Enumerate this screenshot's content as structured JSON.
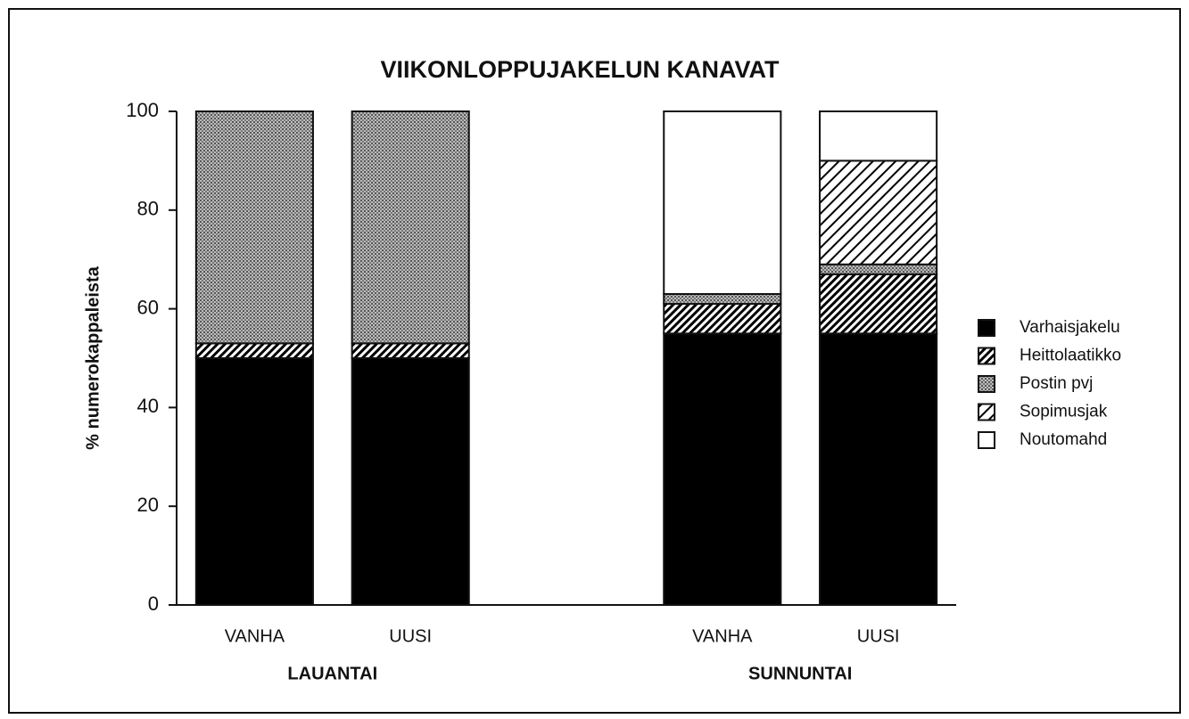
{
  "chart_data": {
    "type": "stacked_bar",
    "title": "VIIKONLOPPUJAKELUN KANAVAT",
    "y_label": "% numerokappaleista",
    "categories": [
      "VANHA",
      "UUSI",
      null,
      "VANHA",
      "UUSI"
    ],
    "groups": [
      {
        "label": "LAUANTAI",
        "categories": [
          0,
          1
        ]
      },
      {
        "label": "SUNNUNTAI",
        "categories": [
          3,
          4
        ]
      }
    ],
    "series": [
      {
        "name": "Varhaisjakelu",
        "color": "#000000",
        "pattern": "solid",
        "values": [
          50,
          50,
          null,
          55,
          55
        ]
      },
      {
        "name": "Heittolaatikko",
        "color": "#000000",
        "pattern": "dense-hatch",
        "values": [
          3,
          3,
          null,
          6,
          12
        ]
      },
      {
        "name": "Postin pvj",
        "color": "#000000",
        "pattern": "dots",
        "values": [
          47,
          47,
          null,
          2,
          2
        ]
      },
      {
        "name": "Sopimusjak",
        "color": "#000000",
        "pattern": "hatch",
        "values": [
          0,
          0,
          null,
          0,
          21
        ]
      },
      {
        "name": "Noutomahd",
        "color": "#000000",
        "pattern": "none",
        "values": [
          0,
          0,
          null,
          37,
          10
        ]
      }
    ],
    "ylim": [
      0,
      100
    ],
    "yticks": [
      0,
      20,
      40,
      60,
      80,
      100
    ],
    "legend": "right"
  }
}
